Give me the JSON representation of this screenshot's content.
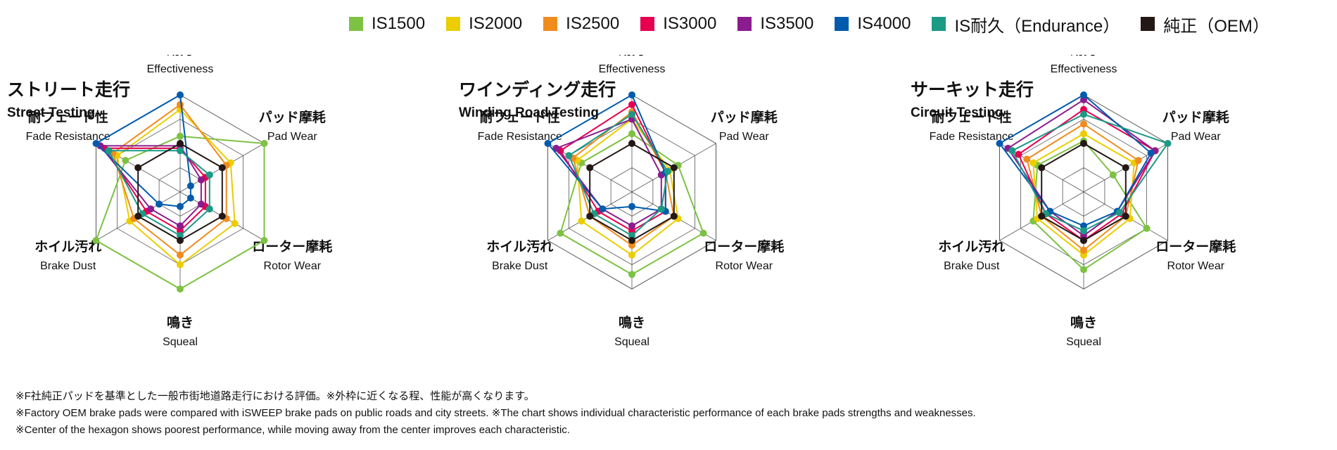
{
  "legend": [
    {
      "label": "IS1500",
      "color": "#7dc242"
    },
    {
      "label": "IS2000",
      "color": "#ebcd00"
    },
    {
      "label": "IS2500",
      "color": "#f08c1e"
    },
    {
      "label": "IS3000",
      "color": "#e6004f"
    },
    {
      "label": "IS3500",
      "color": "#8b1c8e"
    },
    {
      "label": "IS4000",
      "color": "#005bac"
    },
    {
      "label": "IS耐久（Endurance）",
      "color": "#1b9a86"
    },
    {
      "label": "純正（OEM）",
      "color": "#231815"
    }
  ],
  "chart_data": [
    {
      "type": "radar",
      "title": "ストリート走行",
      "subtitle": "Street Testing",
      "axes": [
        {
          "ja": "効力",
          "en": "Effectiveness"
        },
        {
          "ja": "パッド摩耗",
          "en": "Pad Wear"
        },
        {
          "ja": "ローター摩耗",
          "en": "Rotor Wear"
        },
        {
          "ja": "鳴き",
          "en": "Squeal"
        },
        {
          "ja": "ホイル汚れ",
          "en": "Brake Dust"
        },
        {
          "ja": "耐フェード性",
          "en": "Fade Resistance"
        }
      ],
      "rlim": [
        0,
        4
      ],
      "series": [
        {
          "name": "IS1500",
          "values": [
            2.3,
            4.0,
            4.0,
            4.0,
            4.0,
            2.6
          ]
        },
        {
          "name": "IS2000",
          "values": [
            3.4,
            2.4,
            2.6,
            3.0,
            2.4,
            3.0
          ]
        },
        {
          "name": "IS2500",
          "values": [
            3.6,
            2.2,
            2.2,
            2.6,
            2.2,
            3.2
          ]
        },
        {
          "name": "IS3000",
          "values": [
            1.8,
            1.2,
            1.2,
            1.6,
            1.6,
            3.6
          ]
        },
        {
          "name": "IS3500",
          "values": [
            1.9,
            1.0,
            1.0,
            1.4,
            1.4,
            3.8
          ]
        },
        {
          "name": "IS4000",
          "values": [
            4.0,
            0.5,
            0.5,
            0.6,
            1.0,
            4.0
          ]
        },
        {
          "name": "IS耐久（Endurance）",
          "values": [
            1.7,
            1.4,
            1.4,
            1.8,
            1.8,
            3.4
          ]
        },
        {
          "name": "純正（OEM）",
          "values": [
            2.0,
            2.0,
            2.0,
            2.0,
            2.0,
            2.0
          ]
        }
      ]
    },
    {
      "type": "radar",
      "title": "ワインディング走行",
      "subtitle": "Winding Road Testing",
      "axes": [
        {
          "ja": "効力",
          "en": "Effectiveness"
        },
        {
          "ja": "パッド摩耗",
          "en": "Pad Wear"
        },
        {
          "ja": "ローター摩耗",
          "en": "Rotor Wear"
        },
        {
          "ja": "鳴き",
          "en": "Squeal"
        },
        {
          "ja": "ホイル汚れ",
          "en": "Brake Dust"
        },
        {
          "ja": "耐フェード性",
          "en": "Fade Resistance"
        }
      ],
      "rlim": [
        0,
        4
      ],
      "series": [
        {
          "name": "IS1500",
          "values": [
            2.4,
            2.2,
            3.4,
            3.4,
            3.4,
            2.4
          ]
        },
        {
          "name": "IS2000",
          "values": [
            3.0,
            1.8,
            2.2,
            2.6,
            2.4,
            2.6
          ]
        },
        {
          "name": "IS2500",
          "values": [
            3.3,
            1.6,
            2.0,
            2.2,
            2.0,
            2.8
          ]
        },
        {
          "name": "IS3000",
          "values": [
            3.6,
            1.6,
            1.6,
            1.6,
            1.6,
            3.4
          ]
        },
        {
          "name": "IS3500",
          "values": [
            3.0,
            1.4,
            1.4,
            1.4,
            1.4,
            3.6
          ]
        },
        {
          "name": "IS4000",
          "values": [
            4.0,
            1.6,
            1.6,
            0.6,
            1.4,
            4.0
          ]
        },
        {
          "name": "IS耐久（Endurance）",
          "values": [
            3.2,
            1.7,
            1.4,
            1.8,
            1.8,
            3.0
          ]
        },
        {
          "name": "純正（OEM）",
          "values": [
            2.0,
            2.0,
            2.0,
            2.0,
            2.0,
            2.0
          ]
        }
      ]
    },
    {
      "type": "radar",
      "title": "サーキット走行",
      "subtitle": "Circuit Testing",
      "axes": [
        {
          "ja": "効力",
          "en": "Effectiveness"
        },
        {
          "ja": "パッド摩耗",
          "en": "Pad Wear"
        },
        {
          "ja": "ローター摩耗",
          "en": "Rotor Wear"
        },
        {
          "ja": "鳴き",
          "en": "Squeal"
        },
        {
          "ja": "ホイル汚れ",
          "en": "Brake Dust"
        },
        {
          "ja": "耐フェード性",
          "en": "Fade Resistance"
        }
      ],
      "rlim": [
        0,
        4
      ],
      "series": [
        {
          "name": "IS1500",
          "values": [
            2.1,
            1.4,
            3.0,
            3.2,
            2.4,
            2.2
          ]
        },
        {
          "name": "IS2000",
          "values": [
            2.4,
            2.4,
            2.2,
            2.6,
            2.2,
            2.4
          ]
        },
        {
          "name": "IS2500",
          "values": [
            2.8,
            2.6,
            2.0,
            2.4,
            2.0,
            2.7
          ]
        },
        {
          "name": "IS3000",
          "values": [
            3.4,
            3.4,
            1.8,
            2.0,
            1.8,
            3.1
          ]
        },
        {
          "name": "IS3500",
          "values": [
            3.8,
            3.4,
            1.6,
            1.8,
            1.6,
            3.6
          ]
        },
        {
          "name": "IS4000",
          "values": [
            4.0,
            3.2,
            1.6,
            1.4,
            1.6,
            4.0
          ]
        },
        {
          "name": "IS耐久（Endurance）",
          "values": [
            3.2,
            4.0,
            1.7,
            1.6,
            1.8,
            3.4
          ]
        },
        {
          "name": "純正（OEM）",
          "values": [
            2.0,
            2.0,
            2.0,
            2.0,
            2.0,
            2.0
          ]
        }
      ]
    }
  ],
  "footnotes": [
    "※F社純正パッドを基準とした一般市街地道路走行における評価。※外枠に近くなる程、性能が高くなります。",
    "※Factory OEM brake pads were compared with iSWEEP brake pads on public roads and city streets.  ※The chart shows individual characteristic performance of each brake pads strengths and weaknesses.",
    "※Center of the hexagon shows poorest performance, while moving away from the center improves each characteristic."
  ]
}
